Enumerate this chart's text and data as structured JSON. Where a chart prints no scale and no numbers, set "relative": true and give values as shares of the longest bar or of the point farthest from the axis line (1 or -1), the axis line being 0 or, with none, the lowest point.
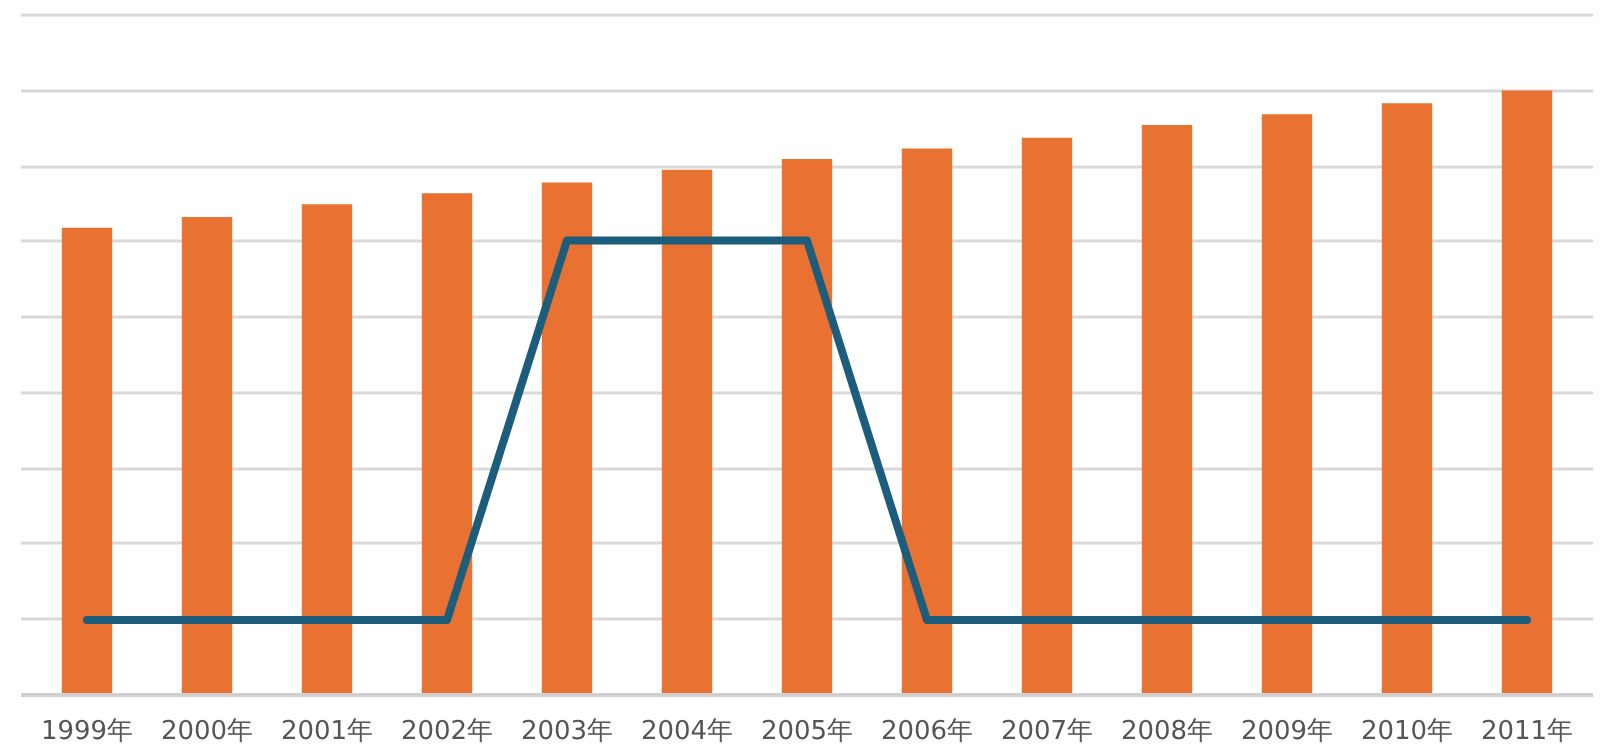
{
  "chart_data": {
    "type": "bar",
    "relative": true,
    "grid": "y",
    "categories": [
      "1999年",
      "2000年",
      "2001年",
      "2002年",
      "2003年",
      "2004年",
      "2005年",
      "2006年",
      "2007年",
      "2008年",
      "2009年",
      "2010年",
      "2011年"
    ],
    "series": [
      {
        "color": "#e97132",
        "values": [
          0.773,
          0.791,
          0.812,
          0.83,
          0.848,
          0.869,
          0.887,
          0.904,
          0.922,
          0.943,
          0.961,
          0.979,
          1
        ]
      },
      {
        "type": "line",
        "color": "#1d5d7c",
        "values": [
          0.124,
          0.124,
          0.124,
          0.124,
          0.752,
          0.752,
          0.752,
          0.124,
          0.124,
          0.124,
          0.124,
          0.124,
          0.124
        ]
      }
    ]
  }
}
